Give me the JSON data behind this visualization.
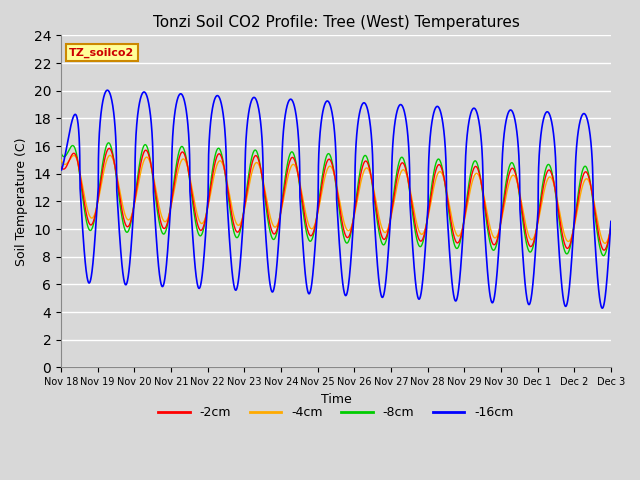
{
  "title": "Tonzi Soil CO2 Profile: Tree (West) Temperatures",
  "xlabel": "Time",
  "ylabel": "Soil Temperature (C)",
  "ylim": [
    0,
    24
  ],
  "yticks": [
    0,
    2,
    4,
    6,
    8,
    10,
    12,
    14,
    16,
    18,
    20,
    22,
    24
  ],
  "legend_labels": [
    "-2cm",
    "-4cm",
    "-8cm",
    "-16cm"
  ],
  "legend_colors": [
    "#ff0000",
    "#ffaa00",
    "#00cc00",
    "#0000ff"
  ],
  "bg_color": "#d8d8d8",
  "plot_bg_color": "#d8d8d8",
  "label_box_color": "#ffff99",
  "label_box_text": "TZ_soilco2",
  "label_box_text_color": "#cc0000",
  "xtick_labels": [
    "Nov 18",
    "Nov 19",
    "Nov 20",
    "Nov 21",
    "Nov 22",
    "Nov 23",
    "Nov 24",
    "Nov 25",
    "Nov 26",
    "Nov 27",
    "Nov 28",
    "Nov 29",
    "Nov 30",
    "Dec 1",
    "Dec 2",
    "Dec 3"
  ]
}
